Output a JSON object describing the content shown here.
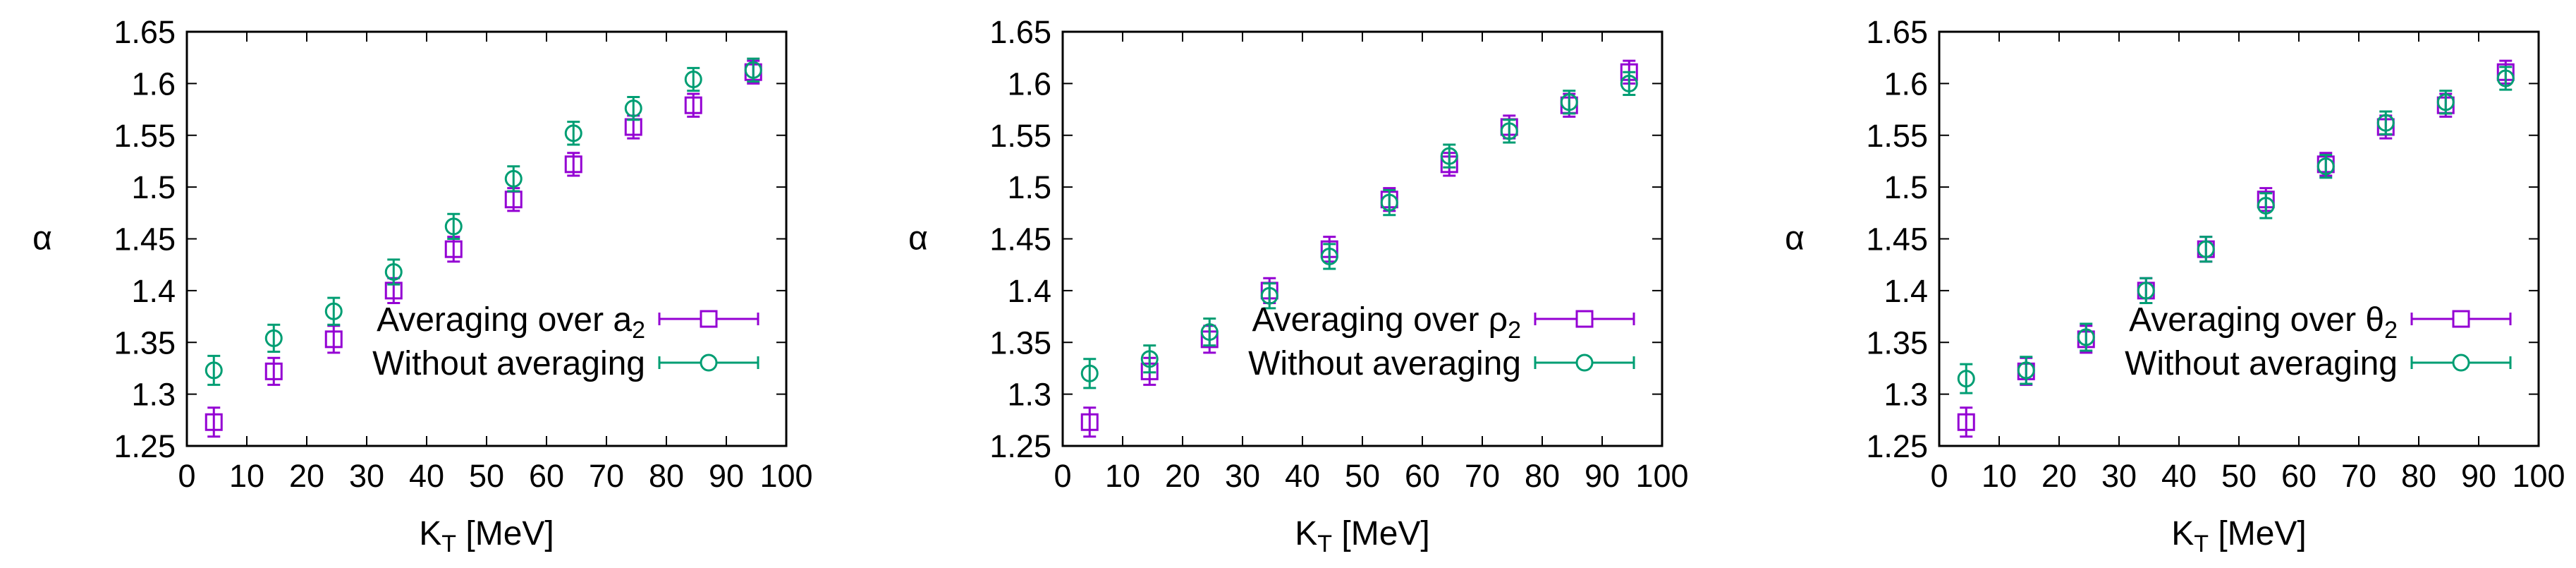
{
  "colors": {
    "series_a": "#9400d3",
    "series_b": "#009e73",
    "axis": "#000000"
  },
  "chart_data": [
    {
      "type": "scatter",
      "xlabel_main": "K",
      "xlabel_sub": "T",
      "xlabel_unit": "[MeV]",
      "ylabel": "α",
      "xlim": [
        0,
        100
      ],
      "ylim": [
        1.25,
        1.65
      ],
      "xticks": [
        "0",
        "10",
        "20",
        "30",
        "40",
        "50",
        "60",
        "70",
        "80",
        "90",
        "100"
      ],
      "yticks": [
        "1.25",
        "1.3",
        "1.35",
        "1.4",
        "1.45",
        "1.5",
        "1.55",
        "1.6",
        "1.65"
      ],
      "grid": false,
      "legend_position": "bottom-right",
      "series": [
        {
          "name_main": "Averaging over a",
          "name_sub": "2",
          "marker": "square",
          "x": [
            4.5,
            14.5,
            24.5,
            34.5,
            44.5,
            54.5,
            64.5,
            74.5,
            84.5,
            94.5
          ],
          "y": [
            1.273,
            1.322,
            1.353,
            1.4,
            1.44,
            1.488,
            1.522,
            1.558,
            1.579,
            1.611
          ],
          "err": [
            0.014,
            0.013,
            0.013,
            0.012,
            0.012,
            0.011,
            0.011,
            0.011,
            0.011,
            0.011
          ]
        },
        {
          "name_main": "Without averaging",
          "name_sub": "",
          "marker": "circle",
          "x": [
            4.5,
            14.5,
            24.5,
            34.5,
            44.5,
            54.5,
            64.5,
            74.5,
            84.5,
            94.5
          ],
          "y": [
            1.323,
            1.354,
            1.38,
            1.418,
            1.462,
            1.508,
            1.552,
            1.576,
            1.604,
            1.613
          ],
          "err": [
            0.014,
            0.013,
            0.013,
            0.012,
            0.012,
            0.012,
            0.011,
            0.011,
            0.011,
            0.011
          ]
        }
      ]
    },
    {
      "type": "scatter",
      "xlabel_main": "K",
      "xlabel_sub": "T",
      "xlabel_unit": "[MeV]",
      "ylabel": "α",
      "xlim": [
        0,
        100
      ],
      "ylim": [
        1.25,
        1.65
      ],
      "xticks": [
        "0",
        "10",
        "20",
        "30",
        "40",
        "50",
        "60",
        "70",
        "80",
        "90",
        "100"
      ],
      "yticks": [
        "1.25",
        "1.3",
        "1.35",
        "1.4",
        "1.45",
        "1.5",
        "1.55",
        "1.6",
        "1.65"
      ],
      "grid": false,
      "legend_position": "bottom-right",
      "series": [
        {
          "name_main": "Averaging over ρ",
          "name_sub": "2",
          "marker": "square",
          "x": [
            4.5,
            14.5,
            24.5,
            34.5,
            44.5,
            54.5,
            64.5,
            74.5,
            84.5,
            94.5
          ],
          "y": [
            1.273,
            1.322,
            1.353,
            1.4,
            1.44,
            1.488,
            1.522,
            1.558,
            1.579,
            1.611
          ],
          "err": [
            0.014,
            0.013,
            0.013,
            0.012,
            0.012,
            0.011,
            0.011,
            0.011,
            0.011,
            0.011
          ]
        },
        {
          "name_main": "Without averaging",
          "name_sub": "",
          "marker": "circle",
          "x": [
            4.5,
            14.5,
            24.5,
            34.5,
            44.5,
            54.5,
            64.5,
            74.5,
            84.5,
            94.5
          ],
          "y": [
            1.32,
            1.334,
            1.36,
            1.395,
            1.433,
            1.485,
            1.53,
            1.554,
            1.582,
            1.6
          ],
          "err": [
            0.014,
            0.013,
            0.013,
            0.012,
            0.012,
            0.012,
            0.011,
            0.011,
            0.011,
            0.011
          ]
        }
      ]
    },
    {
      "type": "scatter",
      "xlabel_main": "K",
      "xlabel_sub": "T",
      "xlabel_unit": "[MeV]",
      "ylabel": "α",
      "xlim": [
        0,
        100
      ],
      "ylim": [
        1.25,
        1.65
      ],
      "xticks": [
        "0",
        "10",
        "20",
        "30",
        "40",
        "50",
        "60",
        "70",
        "80",
        "90",
        "100"
      ],
      "yticks": [
        "1.25",
        "1.3",
        "1.35",
        "1.4",
        "1.45",
        "1.5",
        "1.55",
        "1.6",
        "1.65"
      ],
      "grid": false,
      "legend_position": "bottom-right",
      "series": [
        {
          "name_main": "Averaging over θ",
          "name_sub": "2",
          "marker": "square",
          "x": [
            4.5,
            14.5,
            24.5,
            34.5,
            44.5,
            54.5,
            64.5,
            74.5,
            84.5,
            94.5
          ],
          "y": [
            1.273,
            1.322,
            1.353,
            1.4,
            1.44,
            1.488,
            1.522,
            1.558,
            1.579,
            1.611
          ],
          "err": [
            0.014,
            0.013,
            0.013,
            0.012,
            0.012,
            0.011,
            0.011,
            0.011,
            0.011,
            0.011
          ]
        },
        {
          "name_main": "Without averaging",
          "name_sub": "",
          "marker": "circle",
          "x": [
            4.5,
            14.5,
            24.5,
            34.5,
            44.5,
            54.5,
            64.5,
            74.5,
            84.5,
            94.5
          ],
          "y": [
            1.315,
            1.323,
            1.355,
            1.4,
            1.44,
            1.482,
            1.52,
            1.562,
            1.582,
            1.605
          ],
          "err": [
            0.014,
            0.013,
            0.013,
            0.012,
            0.012,
            0.012,
            0.011,
            0.011,
            0.011,
            0.011
          ]
        }
      ]
    }
  ]
}
